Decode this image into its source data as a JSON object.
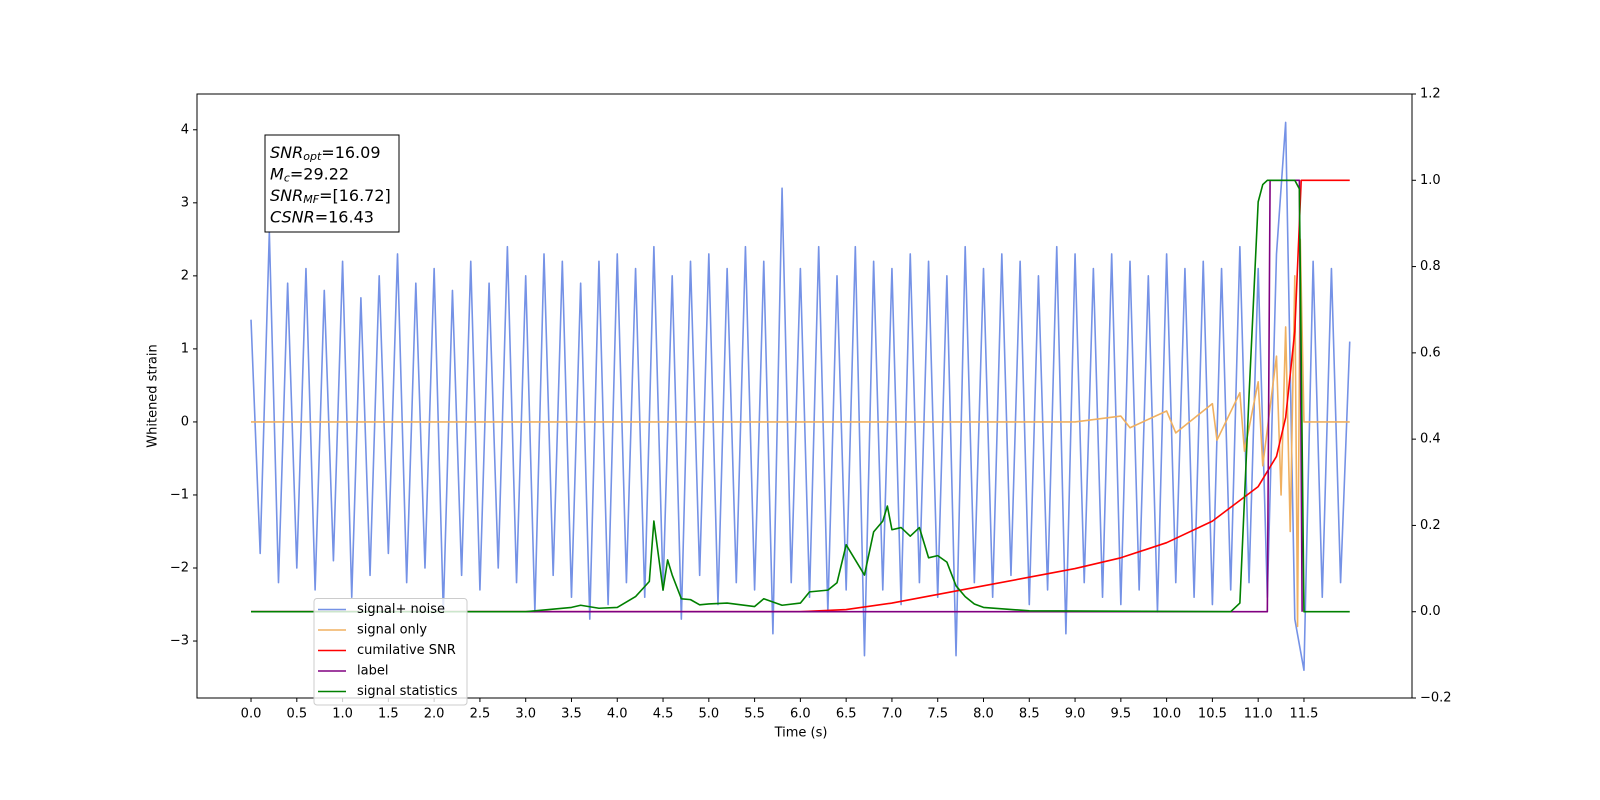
{
  "chart_data": {
    "type": "line",
    "xlabel": "Time (s)",
    "ylabel": "Whitened strain",
    "xlim": [
      -0.59,
      12.68
    ],
    "ylim": [
      -3.78,
      4.49
    ],
    "y2lim": [
      -0.2,
      1.2
    ],
    "xticks": [
      {
        "value": 0,
        "label": "0.0"
      },
      0.5,
      {
        "value": 1,
        "label": "1.0"
      },
      1.5,
      {
        "value": 2,
        "label": "2.0"
      },
      2.5,
      {
        "value": 3,
        "label": "3.0"
      },
      3.5,
      {
        "value": 4,
        "label": "4.0"
      },
      4.5,
      {
        "value": 5,
        "label": "5.0"
      },
      5.5,
      {
        "value": 6,
        "label": "6.0"
      },
      6.5,
      {
        "value": 7,
        "label": "7.0"
      },
      7.5,
      {
        "value": 8,
        "label": "8.0"
      },
      8.5,
      {
        "value": 9,
        "label": "9.0"
      },
      9.5,
      {
        "value": 10,
        "label": "10.0"
      },
      10.5,
      {
        "value": 11,
        "label": "11.0"
      },
      11.5
    ],
    "yticks": [
      {
        "value": -3,
        "label": "−3"
      },
      {
        "value": -2,
        "label": "−2"
      },
      {
        "value": -1,
        "label": "−1"
      },
      0,
      1,
      2,
      3,
      4
    ],
    "y2ticks": [
      {
        "value": -0.2,
        "label": "−0.2"
      },
      {
        "value": 0,
        "label": "0.0"
      },
      0.2,
      0.4,
      0.6,
      0.8,
      {
        "value": 1,
        "label": "1.0"
      },
      1.2
    ],
    "legend": "lower left",
    "annotations": [
      {
        "symbol": "SNR",
        "subscript": "opt",
        "text": "=16.09"
      },
      {
        "symbol": "M",
        "subscript": "c",
        "text": "=29.22"
      },
      {
        "symbol": "SNR",
        "subscript": "MF",
        "text": "=[16.72]"
      },
      {
        "symbol": "CSNR",
        "text": "=16.43"
      }
    ],
    "series": [
      {
        "name": "signal+ noise",
        "color": "#7592e6",
        "axis": "y",
        "x": [
          0,
          0.1,
          0.2,
          0.3,
          0.4,
          0.5,
          0.6,
          0.7,
          0.8,
          0.9,
          1.0,
          1.1,
          1.2,
          1.3,
          1.4,
          1.5,
          1.6,
          1.7,
          1.8,
          1.9,
          2.0,
          2.1,
          2.2,
          2.3,
          2.4,
          2.5,
          2.6,
          2.7,
          2.8,
          2.9,
          3.0,
          3.1,
          3.2,
          3.3,
          3.4,
          3.5,
          3.6,
          3.7,
          3.8,
          3.9,
          4.0,
          4.1,
          4.2,
          4.3,
          4.4,
          4.5,
          4.6,
          4.7,
          4.8,
          4.9,
          5.0,
          5.1,
          5.2,
          5.3,
          5.4,
          5.5,
          5.6,
          5.7,
          5.8,
          5.9,
          6.0,
          6.1,
          6.2,
          6.3,
          6.4,
          6.5,
          6.6,
          6.7,
          6.8,
          6.9,
          7.0,
          7.1,
          7.2,
          7.3,
          7.4,
          7.5,
          7.6,
          7.7,
          7.8,
          7.9,
          8.0,
          8.1,
          8.2,
          8.3,
          8.4,
          8.5,
          8.6,
          8.7,
          8.8,
          8.9,
          9.0,
          9.1,
          9.2,
          9.3,
          9.4,
          9.5,
          9.6,
          9.7,
          9.8,
          9.9,
          10.0,
          10.1,
          10.2,
          10.3,
          10.4,
          10.5,
          10.6,
          10.7,
          10.8,
          10.9,
          11.0,
          11.1,
          11.2,
          11.3,
          11.4,
          11.5,
          11.6,
          11.7,
          11.8,
          11.9,
          12.0
        ],
        "values": [
          1.4,
          -1.8,
          2.6,
          -2.2,
          1.9,
          -2.0,
          2.1,
          -2.3,
          1.8,
          -1.9,
          2.2,
          -2.4,
          1.7,
          -2.1,
          2.0,
          -1.8,
          2.3,
          -2.2,
          1.9,
          -2.0,
          2.1,
          -2.6,
          1.8,
          -2.1,
          2.2,
          -2.3,
          1.9,
          -2.0,
          2.4,
          -2.2,
          2.0,
          -2.6,
          2.3,
          -2.1,
          2.2,
          -2.4,
          1.9,
          -2.7,
          2.2,
          -2.5,
          2.3,
          -2.2,
          2.1,
          -2.4,
          2.4,
          -2.3,
          2.0,
          -2.7,
          2.2,
          -2.1,
          2.3,
          -2.5,
          2.1,
          -2.2,
          2.4,
          -2.3,
          2.2,
          -2.9,
          3.2,
          -2.2,
          2.1,
          -2.4,
          2.4,
          -2.6,
          2.0,
          -2.3,
          2.4,
          -3.2,
          2.2,
          -2.3,
          2.1,
          -2.5,
          2.3,
          -2.2,
          2.2,
          -2.4,
          2.0,
          -3.2,
          2.4,
          -2.2,
          2.1,
          -2.4,
          2.3,
          -2.1,
          2.2,
          -2.5,
          2.0,
          -2.3,
          2.4,
          -2.9,
          2.3,
          -2.2,
          2.1,
          -2.4,
          2.3,
          -2.5,
          2.2,
          -2.3,
          2.0,
          -2.6,
          2.3,
          -2.2,
          2.1,
          -2.4,
          2.2,
          -2.5,
          2.1,
          -2.3,
          2.4,
          -2.2,
          2.1,
          -2.4,
          2.3,
          4.1,
          -2.7,
          -3.4,
          2.2,
          -2.4,
          2.1,
          -2.2,
          1.1
        ]
      },
      {
        "name": "signal only",
        "color": "#f0b060",
        "axis": "y",
        "x": [
          0,
          9.0,
          9.5,
          9.6,
          10.0,
          10.1,
          10.5,
          10.55,
          10.8,
          10.85,
          11.0,
          11.05,
          11.2,
          11.25,
          11.3,
          11.35,
          11.4,
          11.43,
          11.46,
          11.5,
          12.0
        ],
        "values": [
          0,
          0,
          0.08,
          -0.08,
          0.15,
          -0.15,
          0.25,
          -0.25,
          0.4,
          -0.4,
          0.55,
          -0.6,
          0.9,
          -1.0,
          1.3,
          -1.5,
          2.0,
          -2.8,
          2.5,
          0,
          0
        ]
      },
      {
        "name": "cumilative SNR",
        "color": "#ff0000",
        "axis": "y2",
        "x": [
          0,
          6.0,
          6.5,
          7.0,
          7.5,
          8.0,
          8.5,
          9.0,
          9.5,
          10.0,
          10.5,
          11.0,
          11.2,
          11.3,
          11.4,
          11.45,
          11.47,
          12.0
        ],
        "values": [
          0,
          0,
          0.005,
          0.02,
          0.04,
          0.06,
          0.08,
          0.1,
          0.125,
          0.16,
          0.21,
          0.29,
          0.36,
          0.45,
          0.65,
          0.9,
          1.0,
          1.0
        ]
      },
      {
        "name": "label",
        "color": "#800080",
        "axis": "y2",
        "x": [
          0,
          11.1,
          11.13,
          11.45,
          11.48
        ],
        "values": [
          0,
          0,
          1,
          1,
          0
        ]
      },
      {
        "name": "signal statistics",
        "color": "#008000",
        "axis": "y2",
        "x": [
          0,
          3.0,
          3.5,
          3.6,
          3.8,
          4.0,
          4.2,
          4.35,
          4.4,
          4.5,
          4.55,
          4.6,
          4.7,
          4.8,
          4.9,
          5.0,
          5.2,
          5.5,
          5.6,
          5.8,
          6.0,
          6.1,
          6.3,
          6.4,
          6.5,
          6.6,
          6.7,
          6.8,
          6.9,
          6.95,
          7.0,
          7.1,
          7.2,
          7.3,
          7.4,
          7.5,
          7.6,
          7.7,
          7.8,
          7.9,
          8.0,
          8.5,
          10.7,
          10.8,
          10.9,
          11.0,
          11.05,
          11.1,
          11.4,
          11.45,
          11.5,
          12.0
        ],
        "values": [
          0,
          0,
          0.01,
          0.015,
          0.008,
          0.01,
          0.035,
          0.07,
          0.21,
          0.05,
          0.12,
          0.085,
          0.03,
          0.028,
          0.016,
          0.018,
          0.02,
          0.012,
          0.03,
          0.015,
          0.02,
          0.046,
          0.05,
          0.067,
          0.155,
          0.12,
          0.085,
          0.185,
          0.21,
          0.245,
          0.19,
          0.195,
          0.175,
          0.195,
          0.125,
          0.13,
          0.115,
          0.06,
          0.035,
          0.018,
          0.01,
          0.002,
          0,
          0.02,
          0.5,
          0.95,
          0.99,
          1.0,
          1.0,
          0.98,
          0,
          0
        ]
      }
    ]
  }
}
